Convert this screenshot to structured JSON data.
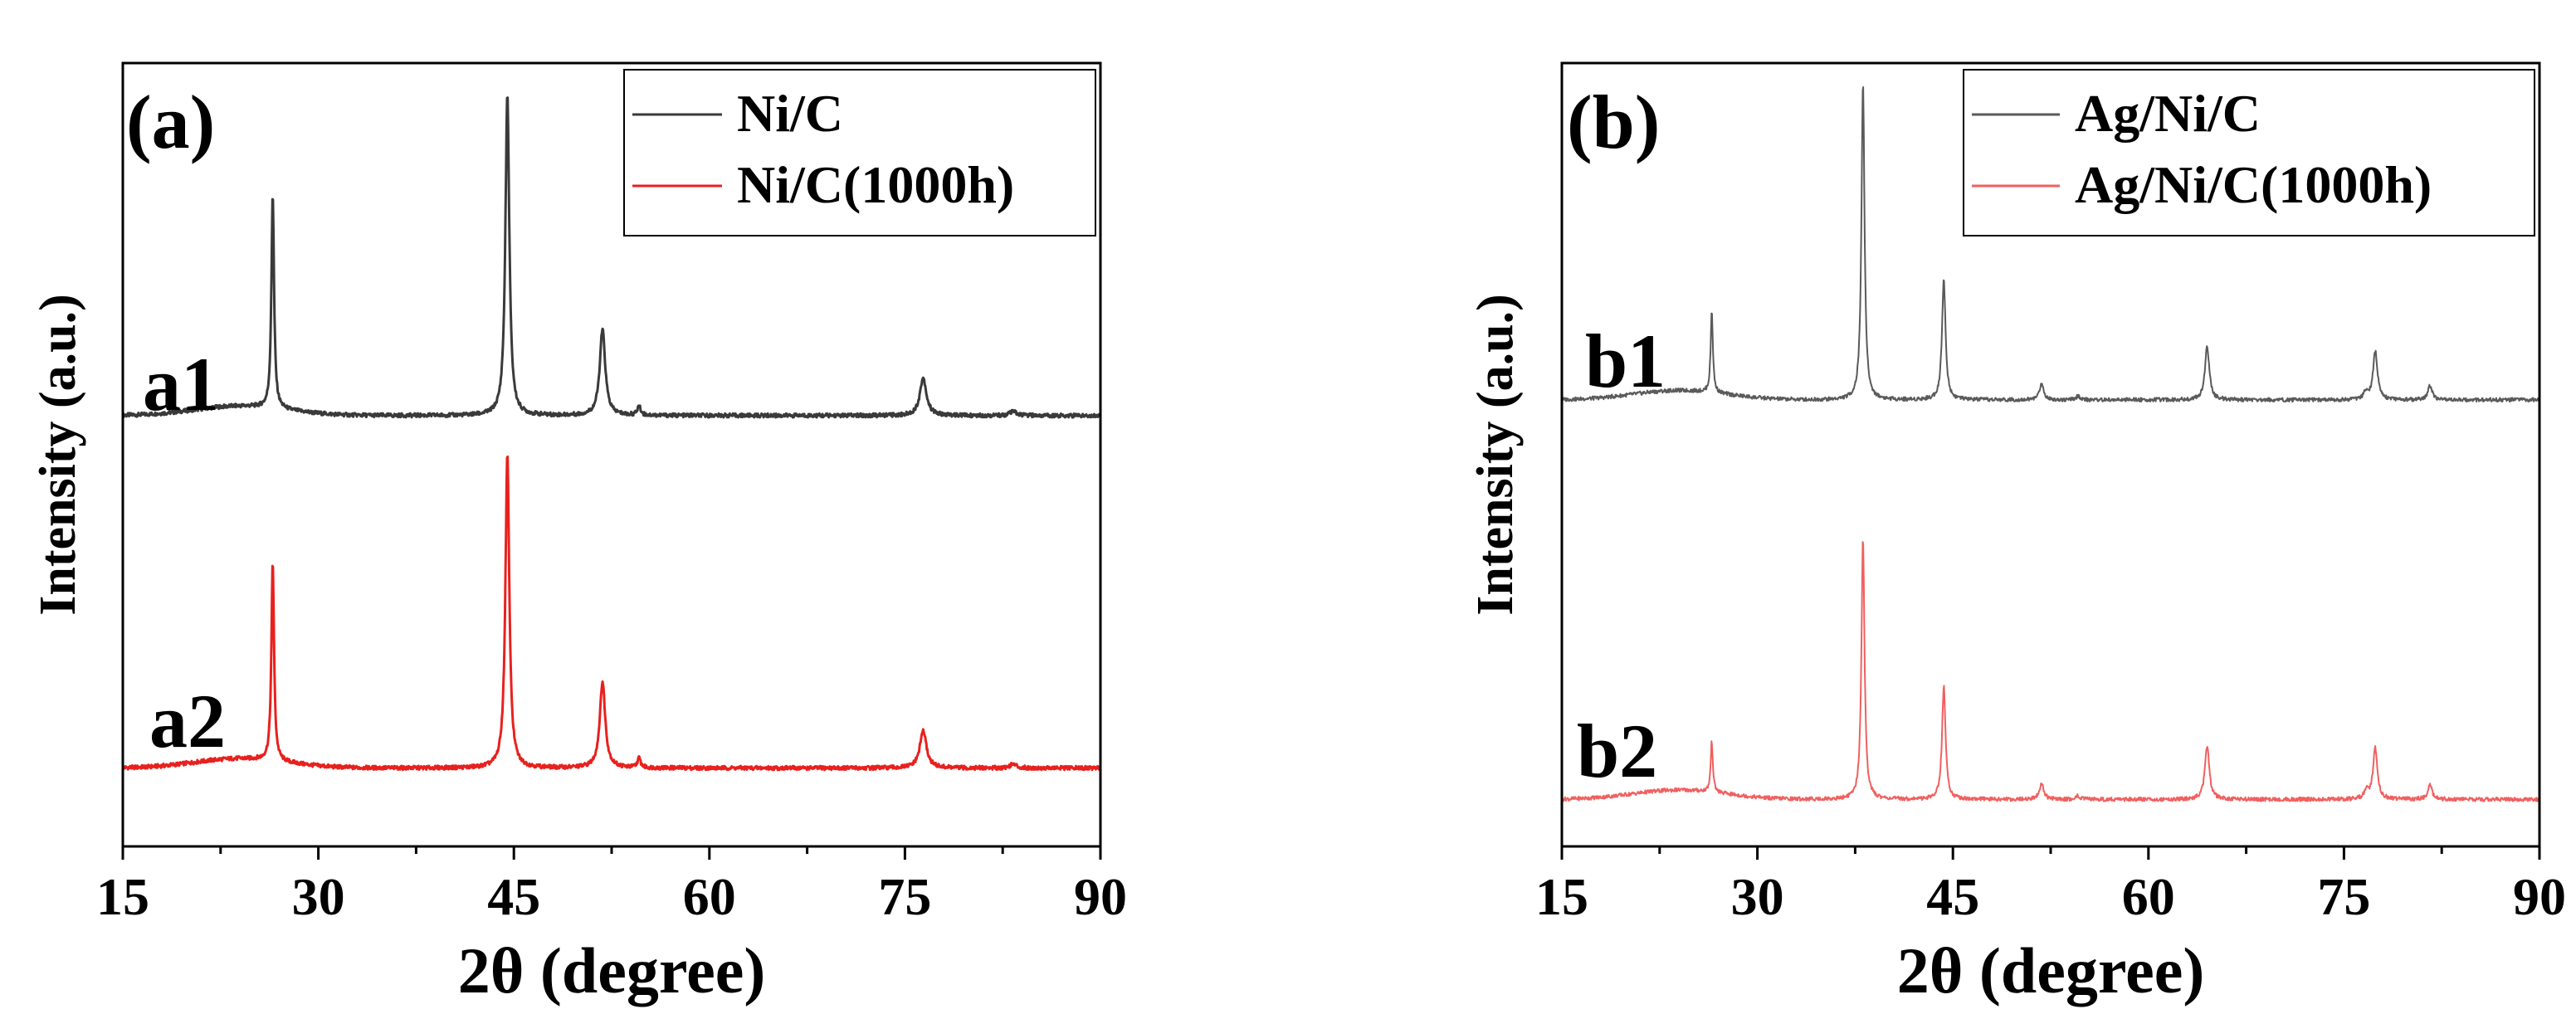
{
  "chart_data": [
    {
      "panel_label": "(a)",
      "type": "line",
      "xlabel": "2θ (degree)",
      "ylabel": "Intensity (a.u.)",
      "xlim": [
        15,
        90
      ],
      "xticks": [
        15,
        30,
        45,
        60,
        75,
        90
      ],
      "ylim": [
        0,
        10
      ],
      "legend": "top-right",
      "series": [
        {
          "name": "Ni/C",
          "tag": "a1",
          "color": "#3a3a3a",
          "baseline": 5.5,
          "peaks": [
            {
              "x": 26.5,
              "h": 2.75,
              "w": 0.12
            },
            {
              "x": 44.5,
              "h": 4.1,
              "w": 0.18
            },
            {
              "x": 51.8,
              "h": 1.1,
              "w": 0.25
            },
            {
              "x": 54.6,
              "h": 0.12,
              "w": 0.15
            },
            {
              "x": 76.4,
              "h": 0.48,
              "w": 0.3
            },
            {
              "x": 83.3,
              "h": 0.05,
              "w": 0.3
            }
          ]
        },
        {
          "name": "Ni/C(1000h)",
          "tag": "a2",
          "color": "#e8211e",
          "baseline": 1.0,
          "peaks": [
            {
              "x": 26.5,
              "h": 2.55,
              "w": 0.12
            },
            {
              "x": 44.5,
              "h": 4.0,
              "w": 0.18
            },
            {
              "x": 51.8,
              "h": 1.1,
              "w": 0.25
            },
            {
              "x": 54.6,
              "h": 0.12,
              "w": 0.15
            },
            {
              "x": 76.4,
              "h": 0.48,
              "w": 0.3
            },
            {
              "x": 83.3,
              "h": 0.05,
              "w": 0.3
            }
          ]
        }
      ]
    },
    {
      "panel_label": "(b)",
      "type": "line",
      "xlabel": "2θ (degree)",
      "ylabel": "Intensity (a.u.)",
      "xlim": [
        15,
        90
      ],
      "xticks": [
        15,
        30,
        45,
        60,
        75,
        90
      ],
      "ylim": [
        0,
        10
      ],
      "legend": "top-right",
      "series": [
        {
          "name": "Ag/Ni/C",
          "tag": "b1",
          "color": "#5a5a5a",
          "baseline": 5.7,
          "peaks": [
            {
              "x": 26.5,
              "h": 1.05,
              "w": 0.1
            },
            {
              "x": 38.1,
              "h": 4.05,
              "w": 0.14
            },
            {
              "x": 44.3,
              "h": 1.55,
              "w": 0.16
            },
            {
              "x": 51.8,
              "h": 0.2,
              "w": 0.2
            },
            {
              "x": 54.6,
              "h": 0.05,
              "w": 0.15
            },
            {
              "x": 64.5,
              "h": 0.68,
              "w": 0.2
            },
            {
              "x": 76.7,
              "h": 0.1,
              "w": 0.2
            },
            {
              "x": 77.4,
              "h": 0.62,
              "w": 0.2
            },
            {
              "x": 81.6,
              "h": 0.18,
              "w": 0.2
            }
          ]
        },
        {
          "name": "Ag/Ni/C(1000h)",
          "tag": "b2",
          "color": "#f06060",
          "baseline": 0.6,
          "peaks": [
            {
              "x": 26.5,
              "h": 0.65,
              "w": 0.1
            },
            {
              "x": 38.1,
              "h": 3.35,
              "w": 0.14
            },
            {
              "x": 44.3,
              "h": 1.45,
              "w": 0.16
            },
            {
              "x": 51.8,
              "h": 0.2,
              "w": 0.2
            },
            {
              "x": 54.6,
              "h": 0.05,
              "w": 0.15
            },
            {
              "x": 64.5,
              "h": 0.68,
              "w": 0.2
            },
            {
              "x": 76.7,
              "h": 0.1,
              "w": 0.2
            },
            {
              "x": 77.4,
              "h": 0.65,
              "w": 0.2
            },
            {
              "x": 81.6,
              "h": 0.18,
              "w": 0.2
            }
          ]
        }
      ]
    }
  ]
}
